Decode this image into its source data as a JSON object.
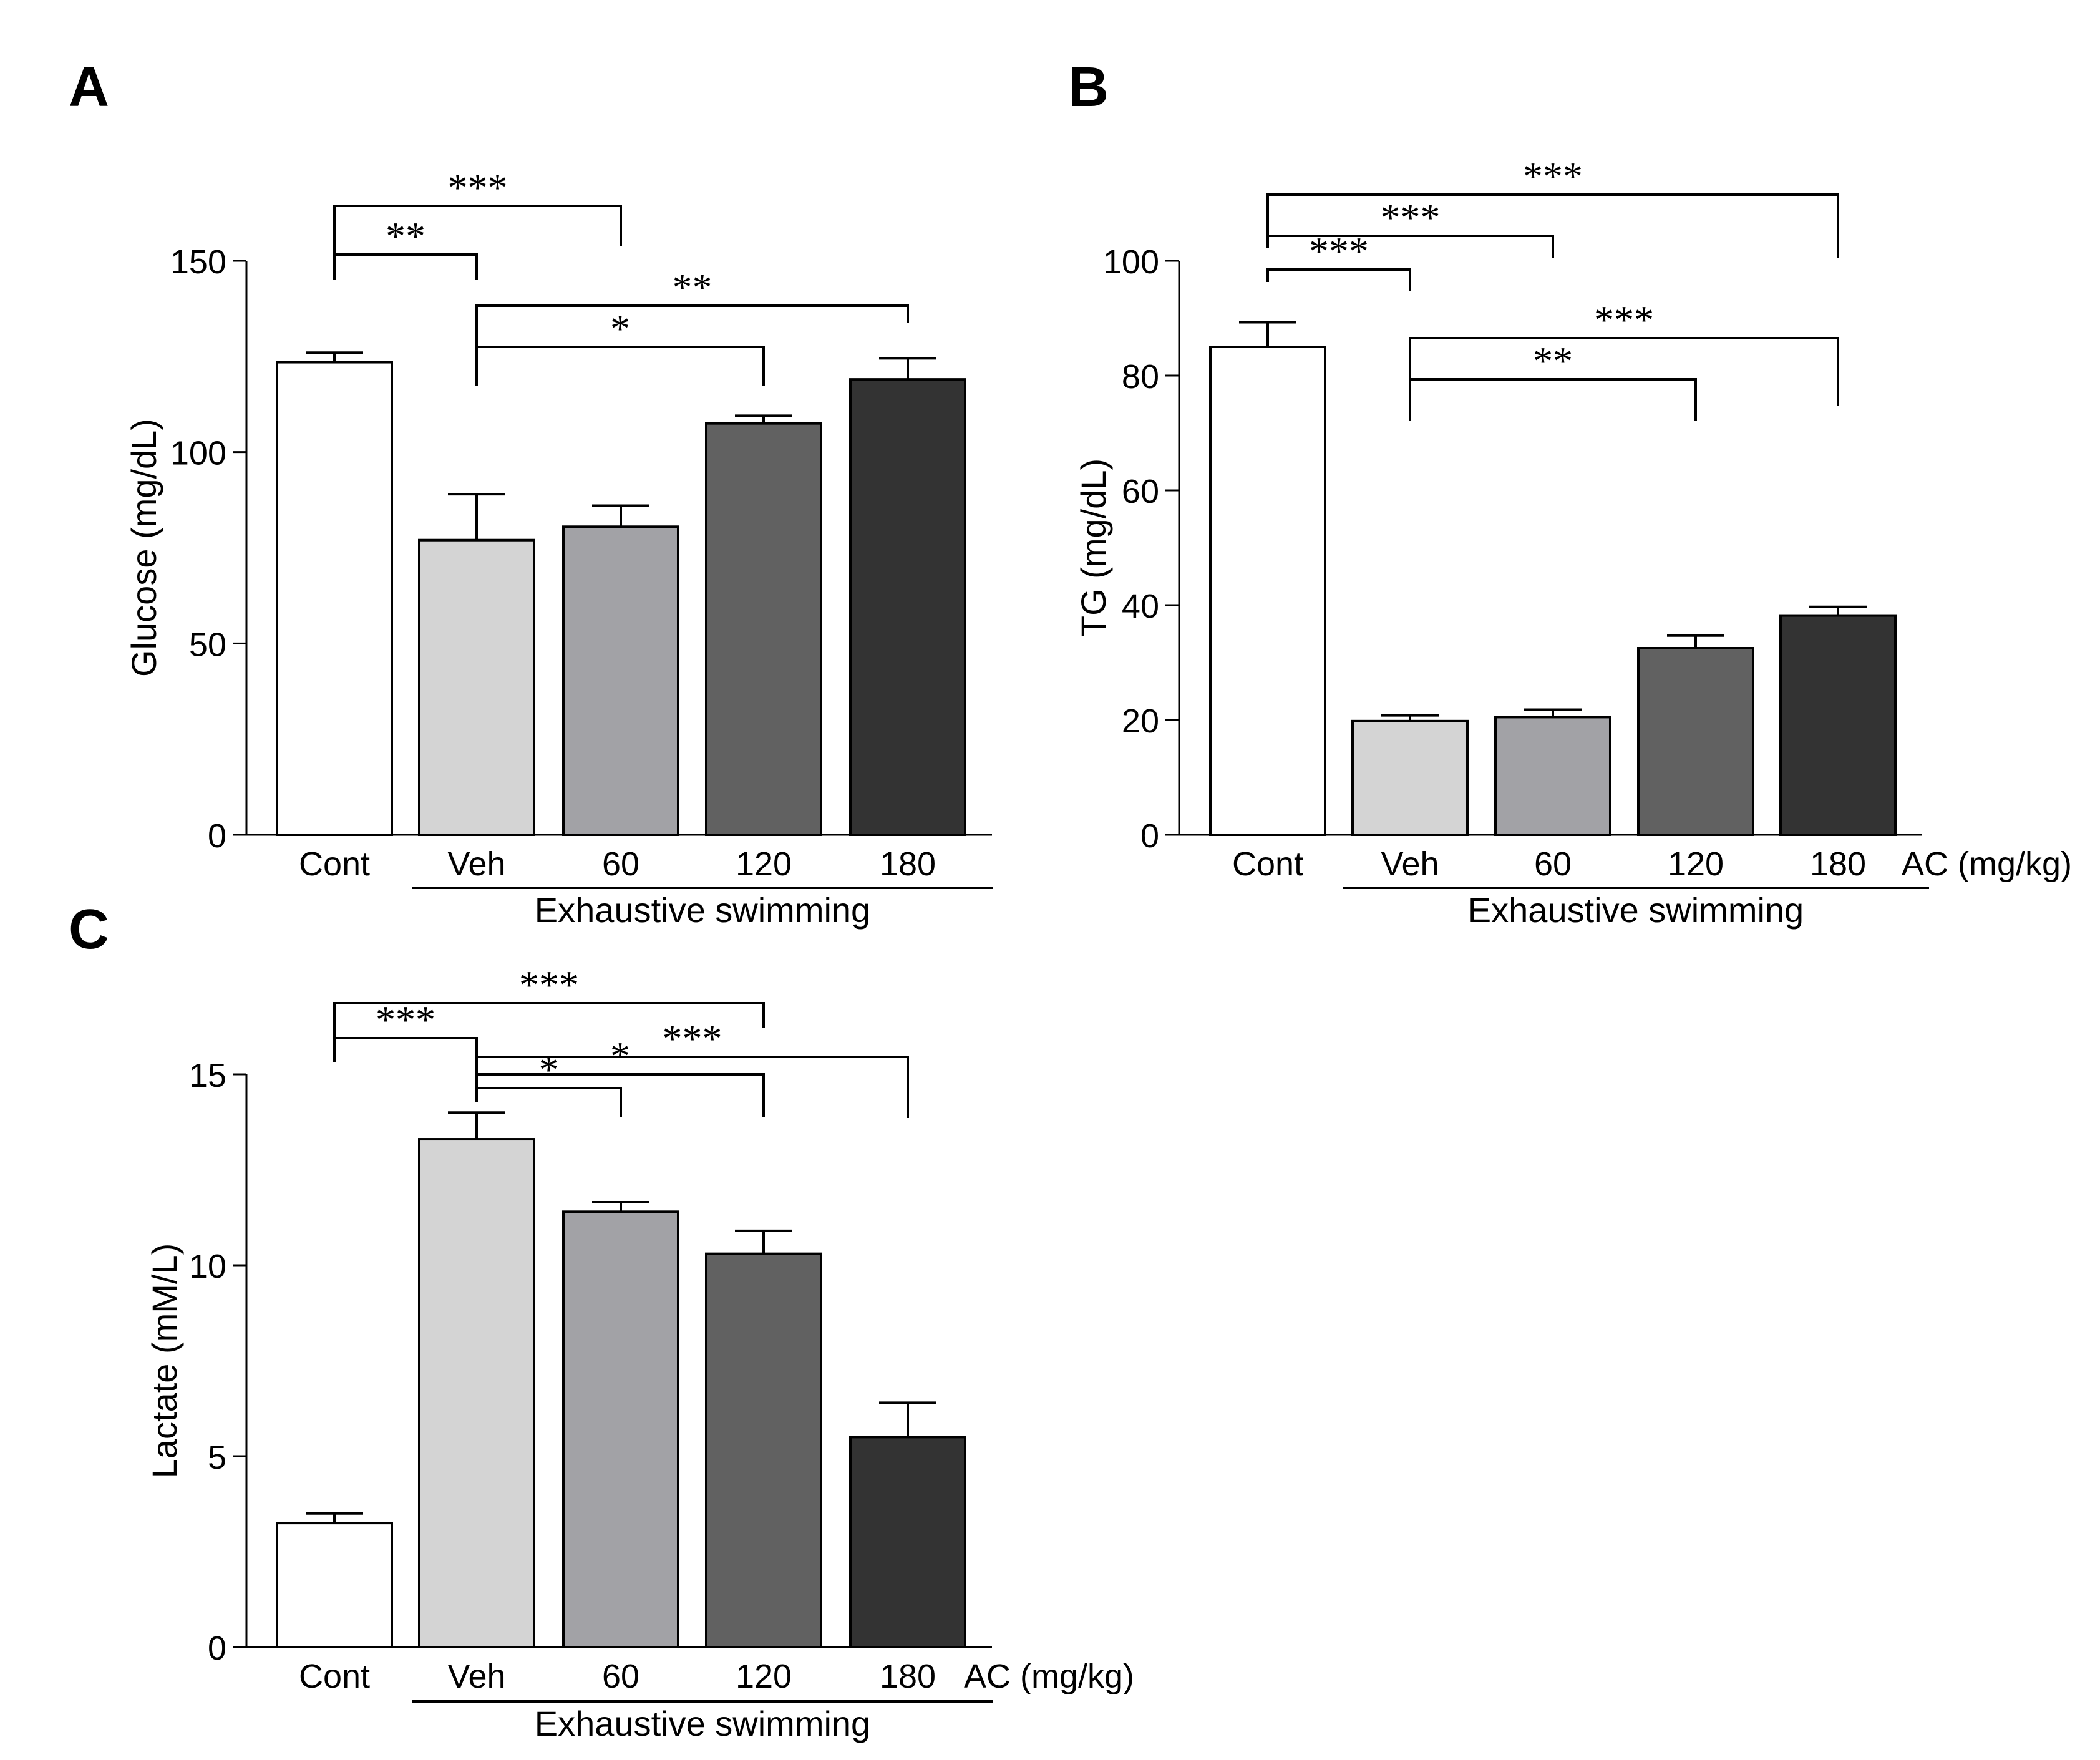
{
  "colors": {
    "cont": "#ffffff",
    "veh": "#d4d4d4",
    "d60": "#a2a2a6",
    "d120": "#616161",
    "d180": "#333333",
    "ink": "#000000"
  },
  "chart_data": [
    {
      "panel": "A",
      "type": "bar",
      "ylabel": "Glucose (mg/dL)",
      "ylim": [
        0,
        150
      ],
      "yticks": [
        0,
        50,
        100,
        150
      ],
      "categories": [
        "Cont",
        "Veh",
        "60",
        "120",
        "180"
      ],
      "values": [
        123.5,
        77,
        80.5,
        107.5,
        119
      ],
      "errors": [
        2.5,
        12,
        5.5,
        2,
        5.5
      ],
      "x_unit_label": "",
      "group_label": "Exhaustive swimming",
      "significance": [
        {
          "from": 0,
          "to": 2,
          "label": "***"
        },
        {
          "from": 0,
          "to": 1,
          "label": "**"
        },
        {
          "from": 1,
          "to": 4,
          "label": "**"
        },
        {
          "from": 1,
          "to": 3,
          "label": "*"
        }
      ]
    },
    {
      "panel": "B",
      "type": "bar",
      "ylabel": "TG (mg/dL)",
      "ylim": [
        0,
        100
      ],
      "yticks": [
        0,
        20,
        40,
        60,
        80,
        100
      ],
      "categories": [
        "Cont",
        "Veh",
        "60",
        "120",
        "180"
      ],
      "values": [
        85,
        19.8,
        20.5,
        32.5,
        38.2
      ],
      "errors": [
        4.3,
        1,
        1.3,
        2.2,
        1.5
      ],
      "x_unit_label": "AC (mg/kg)",
      "group_label": "Exhaustive swimming",
      "significance": [
        {
          "from": 0,
          "to": 4,
          "label": "***"
        },
        {
          "from": 0,
          "to": 2,
          "label": "***"
        },
        {
          "from": 0,
          "to": 1,
          "label": "***"
        },
        {
          "from": 1,
          "to": 4,
          "label": "***"
        },
        {
          "from": 1,
          "to": 3,
          "label": "**"
        }
      ]
    },
    {
      "panel": "C",
      "type": "bar",
      "ylabel": "Lactate (mM/L)",
      "ylim": [
        0,
        15
      ],
      "yticks": [
        0,
        5,
        10,
        15
      ],
      "categories": [
        "Cont",
        "Veh",
        "60",
        "120",
        "180"
      ],
      "values": [
        3.25,
        13.3,
        11.4,
        10.3,
        5.5
      ],
      "errors": [
        0.25,
        0.7,
        0.25,
        0.6,
        0.9
      ],
      "x_unit_label": "AC (mg/kg)",
      "group_label": "Exhaustive swimming",
      "significance": [
        {
          "from": 0,
          "to": 3,
          "label": "***"
        },
        {
          "from": 0,
          "to": 1,
          "label": "***"
        },
        {
          "from": 1,
          "to": 4,
          "label": "***"
        },
        {
          "from": 1,
          "to": 3,
          "label": "*"
        },
        {
          "from": 1,
          "to": 2,
          "label": "*"
        }
      ]
    }
  ]
}
